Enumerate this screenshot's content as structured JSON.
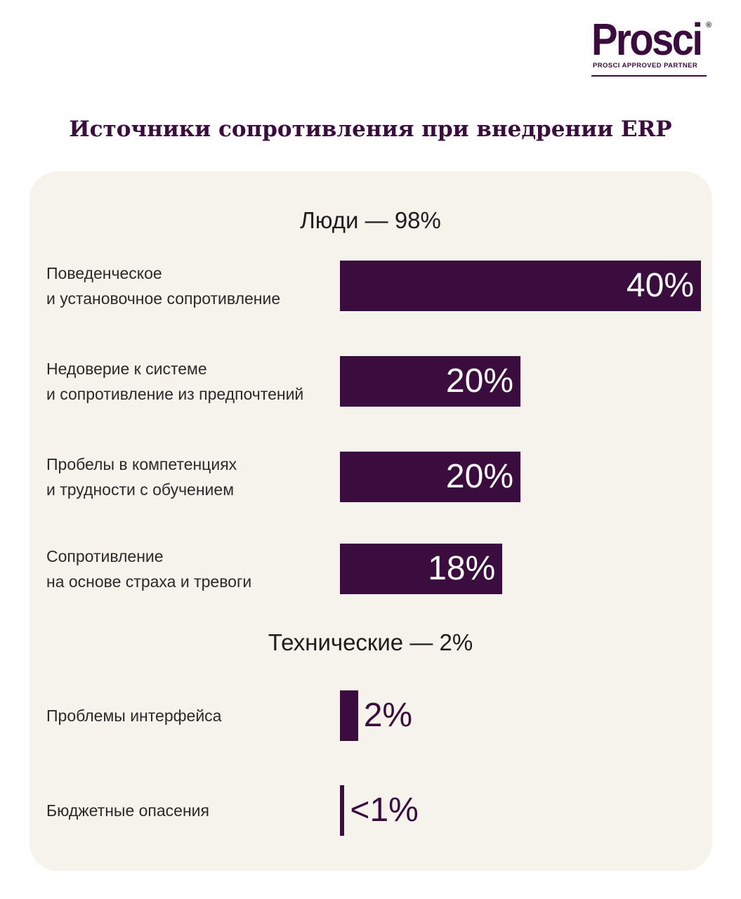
{
  "logo": {
    "word": "Prosci",
    "registered": "®",
    "subtitle": "PROSCI APPROVED PARTNER"
  },
  "colors": {
    "accent": "#3b0d3f",
    "panel": "#f6f2ec",
    "bar_text": "#ffffff"
  },
  "chart_data": {
    "type": "bar",
    "orientation": "horizontal",
    "title": "Источники сопротивления при внедрении ERP",
    "groups": [
      {
        "title": "Люди — 98%",
        "items": [
          {
            "label_lines": [
              "Поведенческое",
              "и установочное сопротивление"
            ],
            "value": 40,
            "value_label": "40%"
          },
          {
            "label_lines": [
              "Недоверие к системе",
              "и сопротивление из предпочтений"
            ],
            "value": 20,
            "value_label": "20%"
          },
          {
            "label_lines": [
              "Пробелы в компетенциях",
              "и трудности с обучением"
            ],
            "value": 20,
            "value_label": "20%"
          },
          {
            "label_lines": [
              "Сопротивление",
              "на основе страха и тревоги"
            ],
            "value": 18,
            "value_label": "18%"
          }
        ]
      },
      {
        "title": "Технические — 2%",
        "items": [
          {
            "label_lines": [
              "Проблемы интерфейса"
            ],
            "value": 2,
            "value_label": "2%"
          },
          {
            "label_lines": [
              "Бюджетные опасения"
            ],
            "value": 0.5,
            "value_label": "<1%"
          }
        ]
      }
    ],
    "xlim": [
      0,
      40
    ],
    "grid": false,
    "legend": "none"
  }
}
